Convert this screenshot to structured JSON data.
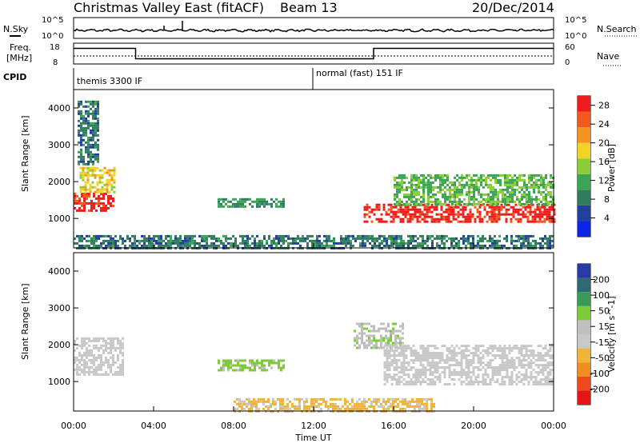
{
  "header": {
    "title": "Christmas Valley East (fitACF)",
    "beam": "Beam 13",
    "date": "20/Dec/2014"
  },
  "top_panels": {
    "nsky_label": "N.Sky",
    "nsearch_label": "N.Search",
    "noise_ticks_left": [
      "10^5",
      "10^0"
    ],
    "noise_ticks_right": [
      "10^5",
      "10^0"
    ],
    "freq_label_1": "Freq.",
    "freq_label_2": "[MHz]",
    "freq_ticks": [
      "18",
      "8"
    ],
    "nave_label": "Nave",
    "nave_ticks": [
      "60",
      "0"
    ],
    "cpid_label": "CPID",
    "cpid_segments": [
      {
        "label": "themis 3300 IF",
        "start_hour": 0
      },
      {
        "label": "normal (fast) 151 IF",
        "start_hour": 12
      }
    ],
    "freq_trace": [
      {
        "hour": 0,
        "mhz": 15.5
      },
      {
        "hour": 3.1,
        "mhz": 15.5
      },
      {
        "hour": 3.1,
        "mhz": 10.5
      },
      {
        "hour": 15.0,
        "mhz": 10.5
      },
      {
        "hour": 15.0,
        "mhz": 15.5
      },
      {
        "hour": 24,
        "mhz": 15.5
      }
    ]
  },
  "x_axis": {
    "label": "Time UT",
    "ticks": [
      "00:00",
      "04:00",
      "08:00",
      "12:00",
      "16:00",
      "20:00",
      "00:00"
    ]
  },
  "colors": {
    "power_scale": [
      "#0b25e6",
      "#223f9e",
      "#2f7c5f",
      "#3aa655",
      "#8ccd3a",
      "#f2d225",
      "#f39421",
      "#f1591e",
      "#ee1c1c"
    ],
    "velocity_scale": [
      "#e81515",
      "#f0481d",
      "#ef8d1f",
      "#f0b43b",
      "#c8c8c8",
      "#bfbfbf",
      "#7ecb3a",
      "#3a9a58",
      "#2e6a74",
      "#283aa6"
    ],
    "ground_scatter": "#c8c8c8"
  },
  "chart_data": [
    {
      "type": "heatmap",
      "name": "power",
      "ylabel": "Slant Range [km]",
      "xlabel": "Time UT",
      "xlim_hours": [
        0,
        24
      ],
      "ylim": [
        200,
        4500
      ],
      "yticks": [
        "1000",
        "2000",
        "3000",
        "4000"
      ],
      "colorbar": {
        "label": "Power [dB]",
        "ticks": [
          "4",
          "8",
          "12",
          "16",
          "20",
          "24",
          "28"
        ],
        "range": [
          0,
          30
        ]
      },
      "features": [
        {
          "start_hour": 0.0,
          "end_hour": 2.0,
          "range_start_km": 1200,
          "range_end_km": 1700,
          "value": 28
        },
        {
          "start_hour": 0.3,
          "end_hour": 2.0,
          "range_start_km": 1700,
          "range_end_km": 2400,
          "value": 18
        },
        {
          "start_hour": 0.2,
          "end_hour": 1.2,
          "range_start_km": 2500,
          "range_end_km": 4200,
          "value": 8
        },
        {
          "start_hour": 7.2,
          "end_hour": 10.5,
          "range_start_km": 1300,
          "range_end_km": 1550,
          "value": 10
        },
        {
          "start_hour": 14.5,
          "end_hour": 24.0,
          "range_start_km": 900,
          "range_end_km": 1400,
          "value": 28
        },
        {
          "start_hour": 16.0,
          "end_hour": 24.0,
          "range_start_km": 1400,
          "range_end_km": 2200,
          "value": 13
        },
        {
          "start_hour": 0.0,
          "end_hour": 24.0,
          "range_start_km": 200,
          "range_end_km": 550,
          "value": 8
        }
      ]
    },
    {
      "type": "heatmap",
      "name": "velocity",
      "ylabel": "Slant Range [km]",
      "xlabel": "Time UT",
      "xlim_hours": [
        0,
        24
      ],
      "ylim": [
        200,
        4500
      ],
      "yticks": [
        "1000",
        "2000",
        "3000",
        "4000"
      ],
      "colorbar": {
        "label": "Velocity [m s^-1]",
        "ticks": [
          "200",
          "100",
          "50",
          "15",
          "-15",
          "-50",
          "-100",
          "-200"
        ],
        "range": [
          -250,
          250
        ]
      },
      "features": [
        {
          "start_hour": 0.0,
          "end_hour": 2.5,
          "range_start_km": 1200,
          "range_end_km": 2200,
          "value": 0,
          "ground_scatter": true
        },
        {
          "start_hour": 7.2,
          "end_hour": 10.5,
          "range_start_km": 1300,
          "range_end_km": 1600,
          "value": 60
        },
        {
          "start_hour": 14.0,
          "end_hour": 16.5,
          "range_start_km": 1900,
          "range_end_km": 2600,
          "value": 40
        },
        {
          "start_hour": 15.5,
          "end_hour": 24.0,
          "range_start_km": 900,
          "range_end_km": 2000,
          "value": 0,
          "ground_scatter": true
        },
        {
          "start_hour": 8.0,
          "end_hour": 18.0,
          "range_start_km": 200,
          "range_end_km": 550,
          "value": -60
        }
      ]
    }
  ]
}
